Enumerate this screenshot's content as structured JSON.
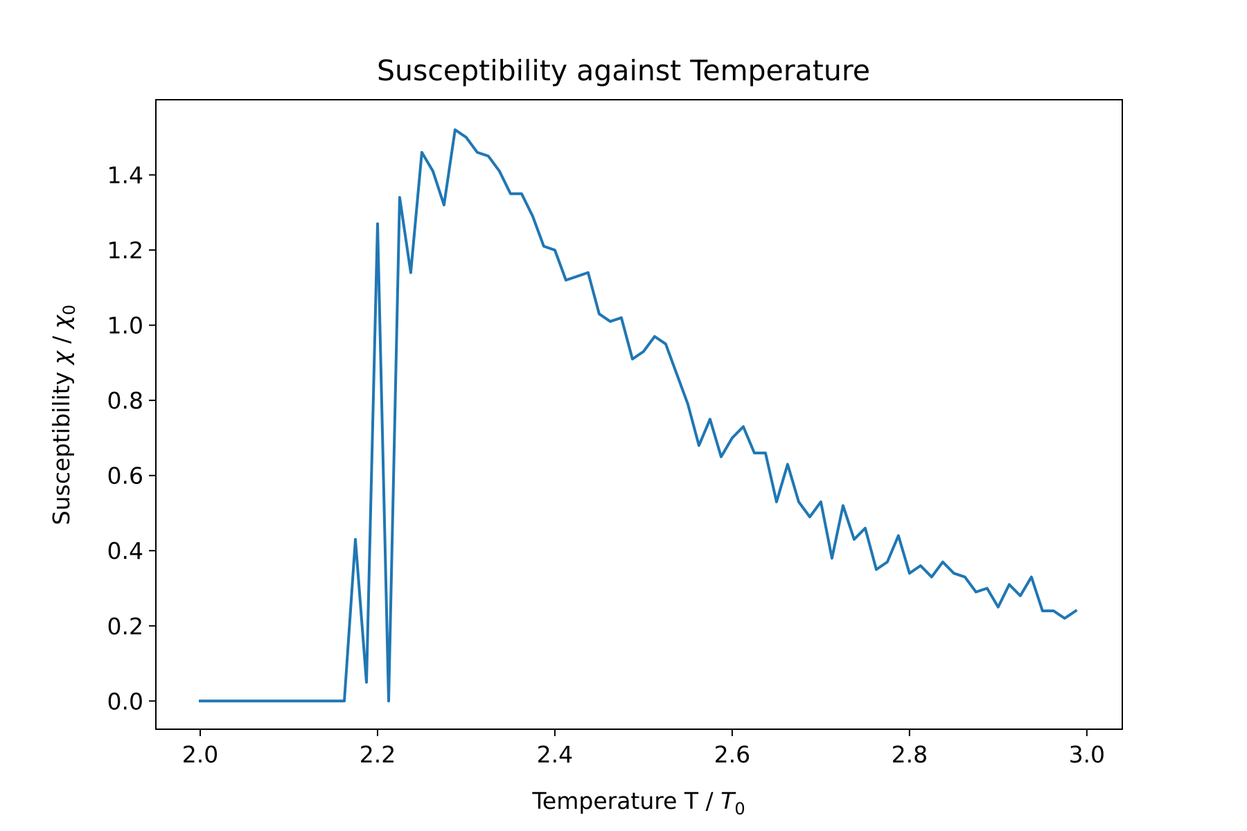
{
  "chart_data": {
    "type": "line",
    "title": "Susceptibility against Temperature",
    "xlabel": {
      "main": "Temperature T / ",
      "italic": "T",
      "sub": "0"
    },
    "ylabel": {
      "main": "Susceptibility ",
      "chi": "χ",
      "sep": " / ",
      "chi2": "χ",
      "sub": "0"
    },
    "xlim": [
      1.95,
      3.04
    ],
    "ylim": [
      -0.075,
      1.6
    ],
    "x_ticks": [
      2.0,
      2.2,
      2.4,
      2.6,
      2.8,
      3.0
    ],
    "x_tick_labels": [
      "2.0",
      "2.2",
      "2.4",
      "2.6",
      "2.8",
      "3.0"
    ],
    "y_ticks": [
      0.0,
      0.2,
      0.4,
      0.6,
      0.8,
      1.0,
      1.2,
      1.4
    ],
    "y_tick_labels": [
      "0.0",
      "0.2",
      "0.4",
      "0.6",
      "0.8",
      "1.0",
      "1.2",
      "1.4"
    ],
    "grid": false,
    "line_color": "#1f77b4",
    "series": [
      {
        "x": [
          2.0,
          2.0125,
          2.025,
          2.0375,
          2.05,
          2.0625,
          2.075,
          2.0875,
          2.1,
          2.1125,
          2.125,
          2.1375,
          2.15,
          2.1625,
          2.175,
          2.1875,
          2.2,
          2.2125,
          2.225,
          2.2375,
          2.25,
          2.2625,
          2.275,
          2.2875,
          2.3,
          2.3125,
          2.325,
          2.3375,
          2.35,
          2.3625,
          2.375,
          2.3875,
          2.4,
          2.4125,
          2.425,
          2.4375,
          2.45,
          2.4625,
          2.475,
          2.4875,
          2.5,
          2.5125,
          2.525,
          2.5375,
          2.55,
          2.5625,
          2.575,
          2.5875,
          2.6,
          2.6125,
          2.625,
          2.6375,
          2.65,
          2.6625,
          2.675,
          2.6875,
          2.7,
          2.7125,
          2.725,
          2.7375,
          2.75,
          2.7625,
          2.775,
          2.7875,
          2.8,
          2.8125,
          2.825,
          2.8375,
          2.85,
          2.8625,
          2.875,
          2.8875,
          2.9,
          2.9125,
          2.925,
          2.9375,
          2.95,
          2.9625,
          2.975,
          2.9875
        ],
        "y": [
          0.0,
          0.0,
          0.0,
          0.0,
          0.0,
          0.0,
          0.0,
          0.0,
          0.0,
          0.0,
          0.0,
          0.0,
          0.0,
          0.0,
          0.43,
          0.05,
          1.27,
          0.0,
          1.34,
          1.14,
          1.46,
          1.41,
          1.32,
          1.52,
          1.5,
          1.46,
          1.45,
          1.41,
          1.35,
          1.35,
          1.29,
          1.21,
          1.2,
          1.12,
          1.13,
          1.14,
          1.03,
          1.01,
          1.02,
          0.91,
          0.93,
          0.97,
          0.95,
          0.87,
          0.79,
          0.68,
          0.75,
          0.65,
          0.7,
          0.73,
          0.66,
          0.66,
          0.53,
          0.63,
          0.53,
          0.49,
          0.53,
          0.38,
          0.52,
          0.43,
          0.46,
          0.35,
          0.37,
          0.44,
          0.34,
          0.36,
          0.33,
          0.37,
          0.34,
          0.33,
          0.29,
          0.3,
          0.25,
          0.31,
          0.28,
          0.33,
          0.24,
          0.24,
          0.22,
          0.24
        ]
      }
    ]
  }
}
